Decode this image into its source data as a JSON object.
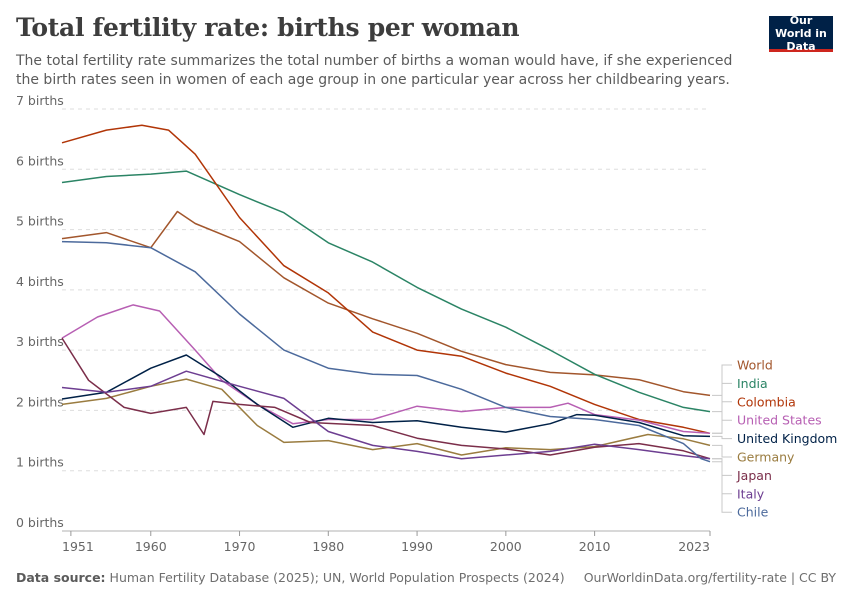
{
  "header": {
    "title": "Total fertility rate: births per woman",
    "subtitle": "The total fertility rate summarizes the total number of births a woman would have, if she experienced the birth rates seen in women of each age group in one particular year across her childbearing years.",
    "logo_text": "Our World in Data"
  },
  "footer": {
    "source_label": "Data source:",
    "source_text": "Human Fertility Database (2025); UN, World Population Prospects (2024)",
    "attribution": "OurWorldinData.org/fertility-rate | CC BY"
  },
  "colors": {
    "World": "#a2562c",
    "India": "#2b8465",
    "Colombia": "#b13507",
    "United States": "#b75fb3",
    "United Kingdom": "#002147",
    "Germany": "#9a7c40",
    "Japan": "#7b2e4a",
    "Italy": "#6d3e91",
    "Chile": "#4c6a9c"
  },
  "chart_data": {
    "type": "line",
    "title": "Total fertility rate: births per woman",
    "xlim": [
      1950,
      2023
    ],
    "ylim": [
      0,
      7
    ],
    "x_ticks": [
      1951,
      1960,
      1970,
      1980,
      1990,
      2000,
      2010,
      2023
    ],
    "y_ticks": [
      {
        "value": 0,
        "label": "0 births"
      },
      {
        "value": 1,
        "label": "1 births"
      },
      {
        "value": 2,
        "label": "2 births"
      },
      {
        "value": 3,
        "label": "3 births"
      },
      {
        "value": 4,
        "label": "4 births"
      },
      {
        "value": 5,
        "label": "5 births"
      },
      {
        "value": 6,
        "label": "6 births"
      },
      {
        "value": 7,
        "label": "7 births"
      }
    ],
    "grid": true,
    "legend_position": "right",
    "series": [
      {
        "name": "World",
        "x": [
          1950,
          1955,
          1960,
          1963,
          1965,
          1970,
          1975,
          1980,
          1985,
          1990,
          1995,
          2000,
          2005,
          2010,
          2015,
          2020,
          2023
        ],
        "y": [
          4.85,
          4.95,
          4.7,
          5.3,
          5.1,
          4.8,
          4.2,
          3.78,
          3.52,
          3.28,
          2.98,
          2.76,
          2.63,
          2.59,
          2.51,
          2.31,
          2.25
        ]
      },
      {
        "name": "India",
        "x": [
          1950,
          1955,
          1960,
          1964,
          1970,
          1975,
          1980,
          1985,
          1990,
          1995,
          2000,
          2005,
          2010,
          2015,
          2020,
          2023
        ],
        "y": [
          5.78,
          5.88,
          5.92,
          5.97,
          5.58,
          5.28,
          4.78,
          4.46,
          4.04,
          3.68,
          3.38,
          3.0,
          2.6,
          2.3,
          2.05,
          1.98
        ]
      },
      {
        "name": "Colombia",
        "x": [
          1950,
          1955,
          1959,
          1962,
          1965,
          1970,
          1975,
          1980,
          1985,
          1990,
          1995,
          2000,
          2005,
          2010,
          2015,
          2020,
          2023
        ],
        "y": [
          6.44,
          6.65,
          6.73,
          6.65,
          6.25,
          5.2,
          4.4,
          3.95,
          3.3,
          3.0,
          2.9,
          2.62,
          2.4,
          2.1,
          1.85,
          1.72,
          1.62
        ]
      },
      {
        "name": "United States",
        "x": [
          1950,
          1954,
          1958,
          1961,
          1965,
          1968,
          1972,
          1976,
          1980,
          1985,
          1990,
          1995,
          2000,
          2005,
          2007,
          2010,
          2015,
          2020,
          2023
        ],
        "y": [
          3.2,
          3.55,
          3.75,
          3.65,
          3.0,
          2.5,
          2.1,
          1.78,
          1.85,
          1.85,
          2.07,
          1.98,
          2.05,
          2.05,
          2.12,
          1.93,
          1.84,
          1.65,
          1.62
        ]
      },
      {
        "name": "United Kingdom",
        "x": [
          1950,
          1955,
          1960,
          1964,
          1968,
          1972,
          1976,
          1980,
          1985,
          1990,
          1995,
          2000,
          2005,
          2008,
          2010,
          2015,
          2020,
          2023
        ],
        "y": [
          2.19,
          2.3,
          2.7,
          2.92,
          2.55,
          2.1,
          1.72,
          1.87,
          1.8,
          1.83,
          1.72,
          1.64,
          1.78,
          1.93,
          1.92,
          1.8,
          1.58,
          1.57
        ]
      },
      {
        "name": "Germany",
        "x": [
          1950,
          1955,
          1960,
          1964,
          1968,
          1972,
          1975,
          1980,
          1985,
          1990,
          1995,
          2000,
          2005,
          2010,
          2016,
          2020,
          2023
        ],
        "y": [
          2.1,
          2.2,
          2.4,
          2.52,
          2.35,
          1.75,
          1.47,
          1.5,
          1.35,
          1.45,
          1.26,
          1.38,
          1.35,
          1.4,
          1.6,
          1.53,
          1.42
        ]
      },
      {
        "name": "Japan",
        "x": [
          1950,
          1953,
          1957,
          1960,
          1964,
          1966,
          1967,
          1970,
          1974,
          1978,
          1985,
          1990,
          1995,
          2000,
          2005,
          2010,
          2015,
          2020,
          2023
        ],
        "y": [
          3.2,
          2.5,
          2.05,
          1.95,
          2.05,
          1.6,
          2.15,
          2.1,
          2.05,
          1.8,
          1.75,
          1.54,
          1.42,
          1.36,
          1.26,
          1.39,
          1.45,
          1.33,
          1.2
        ]
      },
      {
        "name": "Italy",
        "x": [
          1950,
          1955,
          1960,
          1964,
          1970,
          1975,
          1980,
          1985,
          1990,
          1995,
          2000,
          2005,
          2010,
          2015,
          2020,
          2023
        ],
        "y": [
          2.38,
          2.3,
          2.4,
          2.65,
          2.4,
          2.2,
          1.65,
          1.42,
          1.32,
          1.2,
          1.26,
          1.32,
          1.44,
          1.35,
          1.25,
          1.2
        ]
      },
      {
        "name": "Chile",
        "x": [
          1950,
          1955,
          1960,
          1965,
          1970,
          1975,
          1980,
          1985,
          1990,
          1995,
          2000,
          2005,
          2010,
          2015,
          2020,
          2022,
          2023
        ],
        "y": [
          4.8,
          4.78,
          4.7,
          4.3,
          3.6,
          3.0,
          2.7,
          2.6,
          2.58,
          2.35,
          2.05,
          1.9,
          1.85,
          1.75,
          1.45,
          1.2,
          1.15
        ]
      }
    ]
  }
}
